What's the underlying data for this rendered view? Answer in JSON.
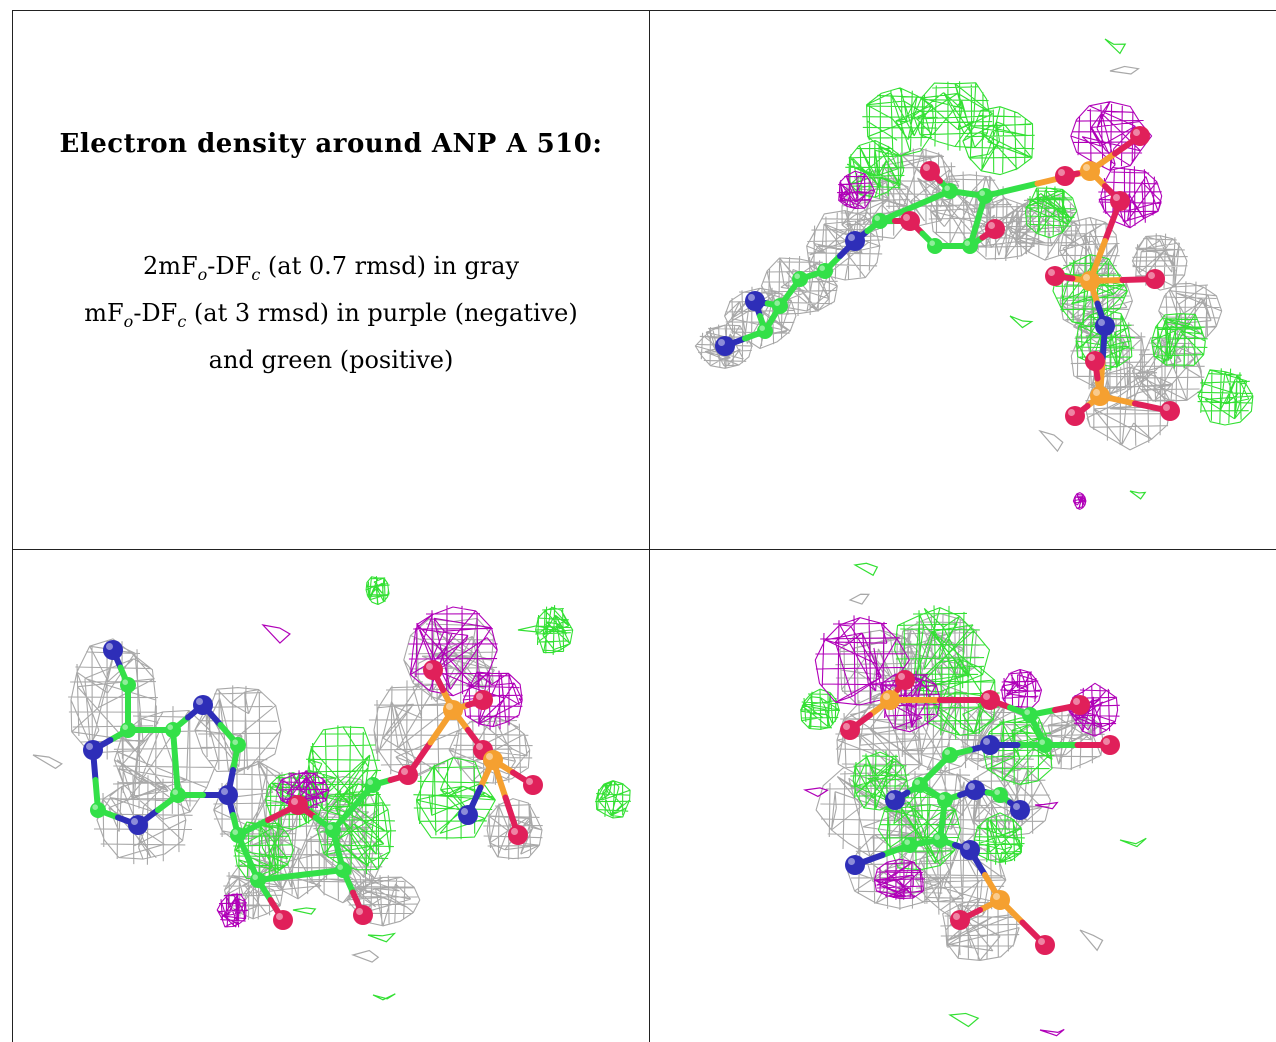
{
  "title": "Electron density around ANP A 510:",
  "legend": {
    "line1": {
      "a": "2mF",
      "sub_o": "o",
      "b": "-DF",
      "sub_c": "c",
      "rest": " (at 0.7 rmsd) in gray"
    },
    "line2": {
      "a": "mF",
      "sub_o": "o",
      "b": "-DF",
      "sub_c": "c",
      "rest": " (at 3 rmsd) in purple (negative)"
    },
    "line3": "and green (positive)"
  },
  "colors": {
    "density_2fofc": "#a8a8a8",
    "density_negative": "#b000b8",
    "density_positive": "#33e033",
    "carbon": "#33e048",
    "nitrogen": "#2e2eb8",
    "oxygen": "#e0205a",
    "phosphorus": "#f5a030"
  }
}
